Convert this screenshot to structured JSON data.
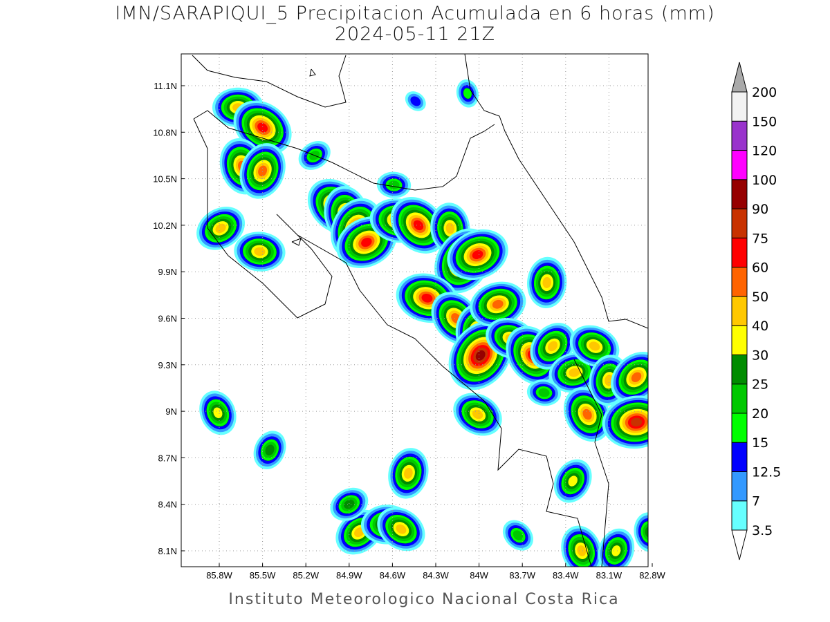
{
  "title": "IMN/SARAPIQUI_5 Precipitacion Acumulada en 6 horas (mm)",
  "subtitle": "2024-05-11 21Z",
  "footer": "Instituto Meteorologico Nacional Costa Rica",
  "map": {
    "lon_range": [
      -86.0,
      -82.5
    ],
    "lat_range": [
      8.0,
      11.3
    ],
    "lon_ticks": [
      {
        "v": -85.8,
        "label": "85.8W"
      },
      {
        "v": -85.5,
        "label": "85.5W"
      },
      {
        "v": -85.2,
        "label": "85.2W"
      },
      {
        "v": -84.9,
        "label": "84.9W"
      },
      {
        "v": -84.6,
        "label": "84.6W"
      },
      {
        "v": -84.3,
        "label": "84.3W"
      },
      {
        "v": -84.0,
        "label": "84W"
      },
      {
        "v": -83.7,
        "label": "83.7W"
      },
      {
        "v": -83.4,
        "label": "83.4W"
      },
      {
        "v": -83.1,
        "label": "83.1W"
      },
      {
        "v": -82.8,
        "label": "82.8W"
      }
    ],
    "lat_ticks": [
      {
        "v": 11.1,
        "label": "11.1N"
      },
      {
        "v": 10.8,
        "label": "10.8N"
      },
      {
        "v": 10.5,
        "label": "10.5N"
      },
      {
        "v": 10.2,
        "label": "10.2N"
      },
      {
        "v": 9.9,
        "label": "9.9N"
      },
      {
        "v": 9.6,
        "label": "9.6N"
      },
      {
        "v": 9.3,
        "label": "9.3N"
      },
      {
        "v": 9.0,
        "label": "9N"
      },
      {
        "v": 8.7,
        "label": "8.7N"
      },
      {
        "v": 8.4,
        "label": "8.4N"
      },
      {
        "v": 8.1,
        "label": "8.1N"
      }
    ],
    "grid": true,
    "precip_cells_mm": [
      {
        "lon": -85.67,
        "lat": 10.96,
        "peak": 40
      },
      {
        "lon": -85.5,
        "lat": 10.83,
        "peak": 60
      },
      {
        "lon": -85.64,
        "lat": 10.58,
        "peak": 50
      },
      {
        "lon": -85.5,
        "lat": 10.55,
        "peak": 50
      },
      {
        "lon": -85.79,
        "lat": 10.18,
        "peak": 40
      },
      {
        "lon": -85.52,
        "lat": 10.03,
        "peak": 40
      },
      {
        "lon": -84.99,
        "lat": 10.32,
        "peak": 60
      },
      {
        "lon": -84.92,
        "lat": 10.27,
        "peak": 50
      },
      {
        "lon": -84.85,
        "lat": 10.18,
        "peak": 60
      },
      {
        "lon": -84.78,
        "lat": 10.09,
        "peak": 60
      },
      {
        "lon": -84.56,
        "lat": 10.23,
        "peak": 50
      },
      {
        "lon": -84.42,
        "lat": 10.2,
        "peak": 60
      },
      {
        "lon": -84.2,
        "lat": 10.18,
        "peak": 40
      },
      {
        "lon": -84.11,
        "lat": 9.97,
        "peak": 75
      },
      {
        "lon": -84.01,
        "lat": 10.01,
        "peak": 60
      },
      {
        "lon": -84.36,
        "lat": 9.73,
        "peak": 60
      },
      {
        "lon": -84.16,
        "lat": 9.6,
        "peak": 50
      },
      {
        "lon": -84.01,
        "lat": 9.51,
        "peak": 50
      },
      {
        "lon": -83.99,
        "lat": 9.36,
        "peak": 90
      },
      {
        "lon": -83.87,
        "lat": 9.69,
        "peak": 50
      },
      {
        "lon": -83.78,
        "lat": 9.47,
        "peak": 40
      },
      {
        "lon": -83.63,
        "lat": 9.36,
        "peak": 60
      },
      {
        "lon": -83.53,
        "lat": 9.83,
        "peak": 40
      },
      {
        "lon": -83.49,
        "lat": 9.42,
        "peak": 40
      },
      {
        "lon": -83.34,
        "lat": 9.25,
        "peak": 40
      },
      {
        "lon": -83.2,
        "lat": 9.42,
        "peak": 40
      },
      {
        "lon": -83.25,
        "lat": 8.98,
        "peak": 50
      },
      {
        "lon": -83.1,
        "lat": 9.2,
        "peak": 40
      },
      {
        "lon": -82.91,
        "lat": 9.22,
        "peak": 50
      },
      {
        "lon": -82.91,
        "lat": 8.93,
        "peak": 75
      },
      {
        "lon": -84.01,
        "lat": 8.98,
        "peak": 40
      },
      {
        "lon": -85.81,
        "lat": 8.99,
        "peak": 30
      },
      {
        "lon": -84.49,
        "lat": 8.6,
        "peak": 40
      },
      {
        "lon": -84.83,
        "lat": 8.22,
        "peak": 40
      },
      {
        "lon": -84.64,
        "lat": 8.27,
        "peak": 40
      },
      {
        "lon": -84.54,
        "lat": 8.24,
        "peak": 40
      },
      {
        "lon": -83.29,
        "lat": 8.1,
        "peak": 40
      },
      {
        "lon": -83.05,
        "lat": 8.1,
        "peak": 30
      },
      {
        "lon": -85.14,
        "lat": 10.65,
        "peak": 20
      },
      {
        "lon": -84.59,
        "lat": 10.46,
        "peak": 20
      },
      {
        "lon": -84.44,
        "lat": 11.0,
        "peak": 12.5
      },
      {
        "lon": -84.08,
        "lat": 11.05,
        "peak": 15
      },
      {
        "lon": -85.45,
        "lat": 8.75,
        "peak": 25
      },
      {
        "lon": -84.9,
        "lat": 8.4,
        "peak": 25
      },
      {
        "lon": -83.55,
        "lat": 9.12,
        "peak": 20
      },
      {
        "lon": -83.73,
        "lat": 8.2,
        "peak": 20
      },
      {
        "lon": -82.82,
        "lat": 8.22,
        "peak": 25
      },
      {
        "lon": -83.35,
        "lat": 8.55,
        "peak": 30
      }
    ]
  },
  "colorbar": {
    "labels": [
      "3.5",
      "7",
      "12.5",
      "15",
      "20",
      "25",
      "30",
      "40",
      "50",
      "60",
      "75",
      "90",
      "100",
      "120",
      "150",
      "200"
    ],
    "colors": [
      "#ffffff",
      "#66ffff",
      "#3399ff",
      "#0000ff",
      "#00ff00",
      "#00c800",
      "#008c00",
      "#ffff00",
      "#ffc800",
      "#ff6400",
      "#ff0000",
      "#c83200",
      "#960000",
      "#ff00ff",
      "#9933cc",
      "#f2f2f2",
      "#aaaaaa"
    ]
  }
}
